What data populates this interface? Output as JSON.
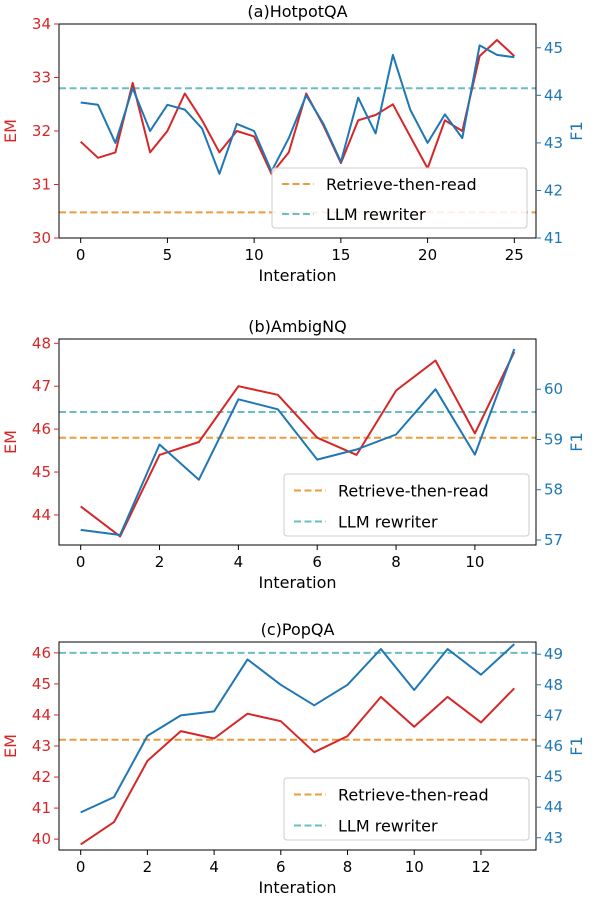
{
  "colors": {
    "em": "#d62728",
    "f1": "#1f77b4",
    "retrieve": "#ee9b3d",
    "rewriter": "#6bbdc4"
  },
  "chart_data": [
    {
      "type": "line",
      "title": "(a)HotpotQA",
      "xlabel": "Interation",
      "ylabel_left": "EM",
      "ylabel_right": "F1",
      "xlim": [
        -1.25,
        26.25
      ],
      "ylim_left": [
        30,
        34
      ],
      "ylim_right": [
        41,
        45.5
      ],
      "xticks": [
        0,
        5,
        10,
        15,
        20,
        25
      ],
      "yticks_left": [
        30,
        31,
        32,
        33,
        34
      ],
      "yticks_right": [
        41,
        42,
        43,
        44,
        45
      ],
      "legend": [
        "Retrieve-then-read",
        "LLM rewriter"
      ],
      "legend_position": "lower-right",
      "series": [
        {
          "axis": "left",
          "x": [
            0,
            1,
            2,
            3,
            4,
            5,
            6,
            7,
            8,
            9,
            10,
            11,
            12,
            13,
            14,
            15,
            16,
            17,
            18,
            19,
            20,
            21,
            22,
            23,
            24,
            25
          ],
          "values": [
            31.8,
            31.5,
            31.6,
            32.9,
            31.6,
            32.0,
            32.7,
            32.2,
            31.6,
            32.0,
            31.9,
            31.2,
            31.6,
            32.7,
            32.1,
            31.4,
            32.2,
            32.3,
            32.5,
            31.9,
            31.3,
            32.2,
            32.0,
            33.4,
            33.7,
            33.4
          ]
        },
        {
          "axis": "right",
          "x": [
            0,
            1,
            2,
            3,
            4,
            5,
            6,
            7,
            8,
            9,
            10,
            11,
            12,
            13,
            14,
            15,
            16,
            17,
            18,
            19,
            20,
            21,
            22,
            23,
            24,
            25
          ],
          "values": [
            43.85,
            43.8,
            43.0,
            44.15,
            43.25,
            43.8,
            43.7,
            43.3,
            42.35,
            43.4,
            43.25,
            42.4,
            43.1,
            44.0,
            43.4,
            42.6,
            43.95,
            43.2,
            44.85,
            43.7,
            43.0,
            43.6,
            43.1,
            45.05,
            44.85,
            44.8
          ]
        }
      ],
      "hlines": [
        {
          "axis": "left",
          "y": 30.48
        },
        {
          "axis": "left",
          "y": 32.8
        }
      ]
    },
    {
      "type": "line",
      "title": "(b)AmbigNQ",
      "xlabel": "Interation",
      "ylabel_left": "EM",
      "ylabel_right": "F1",
      "xlim": [
        -0.55,
        11.55
      ],
      "ylim_left": [
        43.3,
        48.1
      ],
      "ylim_right": [
        56.9,
        61.0
      ],
      "xticks": [
        0,
        2,
        4,
        6,
        8,
        10
      ],
      "yticks_left": [
        44,
        45,
        46,
        47,
        48
      ],
      "yticks_right": [
        57,
        58,
        59,
        60
      ],
      "legend": [
        "Retrieve-then-read",
        "LLM rewriter"
      ],
      "legend_position": "lower-right",
      "series": [
        {
          "axis": "left",
          "x": [
            0,
            1,
            2,
            3,
            4,
            5,
            6,
            7,
            8,
            9,
            10,
            11
          ],
          "values": [
            44.2,
            43.5,
            45.4,
            45.7,
            47.0,
            46.8,
            45.8,
            45.4,
            46.9,
            47.6,
            45.9,
            47.8
          ]
        },
        {
          "axis": "right",
          "x": [
            0,
            1,
            2,
            3,
            4,
            5,
            6,
            7,
            8,
            9,
            10,
            11
          ],
          "values": [
            57.2,
            57.1,
            58.9,
            58.2,
            59.8,
            59.6,
            58.6,
            58.8,
            59.1,
            60.0,
            58.7,
            60.8
          ]
        }
      ],
      "hlines": [
        {
          "axis": "left",
          "y": 45.8
        },
        {
          "axis": "left",
          "y": 46.4
        }
      ]
    },
    {
      "type": "line",
      "title": "(c)PopQA",
      "xlabel": "Interation",
      "ylabel_left": "EM",
      "ylabel_right": "F1",
      "xlim": [
        -0.65,
        13.65
      ],
      "ylim_left": [
        39.65,
        46.35
      ],
      "ylim_right": [
        42.6,
        49.4
      ],
      "xticks": [
        0,
        2,
        4,
        6,
        8,
        10,
        12
      ],
      "yticks_left": [
        40,
        41,
        42,
        43,
        44,
        45,
        46
      ],
      "yticks_right": [
        43,
        44,
        45,
        46,
        47,
        48,
        49
      ],
      "legend": [
        "Retrieve-then-read",
        "LLM rewriter"
      ],
      "legend_position": "lower-right",
      "series": [
        {
          "axis": "left",
          "x": [
            0,
            1,
            2,
            3,
            4,
            5,
            6,
            7,
            8,
            9,
            10,
            11,
            12,
            13
          ],
          "values": [
            39.83,
            40.55,
            42.52,
            43.48,
            43.24,
            44.04,
            43.8,
            42.8,
            43.32,
            44.58,
            43.62,
            44.58,
            43.76,
            44.86
          ]
        },
        {
          "axis": "right",
          "x": [
            0,
            1,
            2,
            3,
            4,
            5,
            6,
            7,
            8,
            9,
            10,
            11,
            12,
            13
          ],
          "values": [
            43.83,
            44.33,
            46.33,
            47.0,
            47.13,
            48.83,
            48.0,
            47.33,
            48.0,
            49.17,
            47.83,
            49.17,
            48.33,
            49.33
          ]
        }
      ],
      "hlines": [
        {
          "axis": "left",
          "y": 43.2
        },
        {
          "axis": "left",
          "y": 46.0
        }
      ]
    }
  ]
}
